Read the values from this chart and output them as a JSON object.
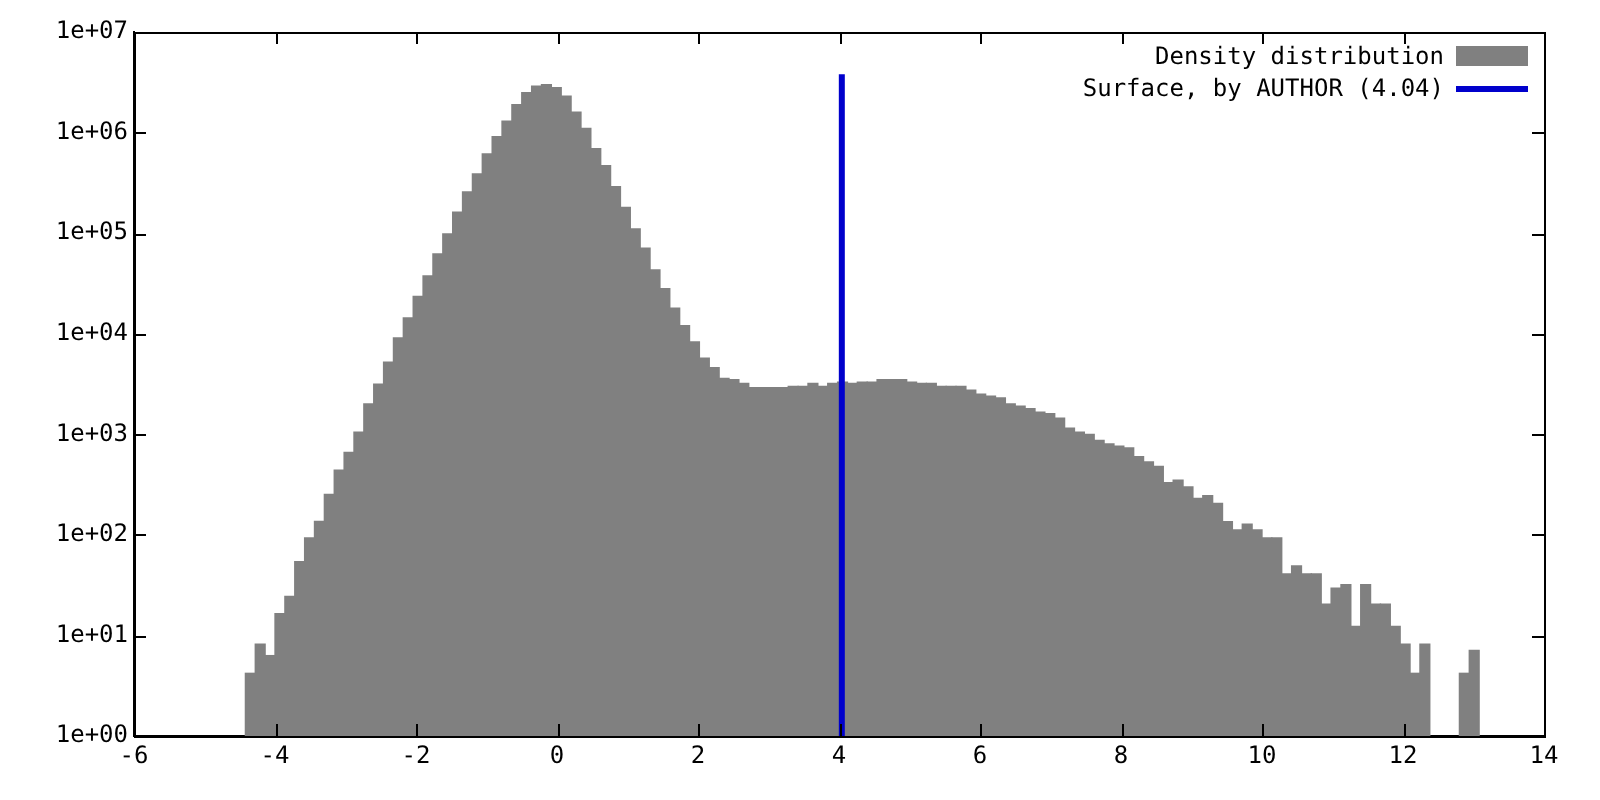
{
  "chart_data": {
    "type": "histogram",
    "log": "y",
    "grid": false,
    "legend": "top right",
    "bins": [
      -4.42,
      -4.28,
      -4.14,
      -4.0,
      -3.86,
      -3.72,
      -3.58,
      -3.44,
      -3.3,
      -3.16,
      -3.02,
      -2.88,
      -2.74,
      -2.6,
      -2.46,
      -2.32,
      -2.18,
      -2.04,
      -1.9,
      -1.76,
      -1.62,
      -1.48,
      -1.34,
      -1.2,
      -1.06,
      -0.92,
      -0.78,
      -0.64,
      -0.5,
      -0.36,
      -0.22,
      -0.08,
      0.06,
      0.2,
      0.34,
      0.48,
      0.62,
      0.76,
      0.9,
      1.04,
      1.18,
      1.32,
      1.46,
      1.6,
      1.74,
      1.88,
      2.02,
      2.16,
      2.3,
      2.44,
      2.58,
      2.72,
      2.86,
      3.0,
      3.14,
      3.28,
      3.42,
      3.56,
      3.7,
      3.84,
      3.98,
      4.12,
      4.26,
      4.4,
      4.54,
      4.68,
      4.82,
      4.96,
      5.1,
      5.24,
      5.38,
      5.52,
      5.66,
      5.8,
      5.94,
      6.08,
      6.22,
      6.36,
      6.5,
      6.64,
      6.78,
      6.92,
      7.06,
      7.2,
      7.34,
      7.48,
      7.62,
      7.76,
      7.9,
      8.04,
      8.18,
      8.32,
      8.46,
      8.6,
      8.74,
      8.88,
      9.02,
      9.16,
      9.3,
      9.44,
      9.58,
      9.72,
      9.86,
      10.0,
      10.14,
      10.28,
      10.42,
      10.56,
      10.7,
      10.84,
      10.98,
      11.12,
      11.26,
      11.4,
      11.54,
      11.68,
      11.82,
      11.96,
      12.1,
      12.24,
      12.38,
      12.52,
      12.66,
      12.8,
      12.94,
      13.08
    ],
    "series": [
      {
        "name": "Density distribution",
        "color": "#808080",
        "values": [
          4.2,
          8.2,
          6.3,
          16.5,
          24.5,
          54,
          93,
          136,
          253,
          440,
          660,
          1050,
          2000,
          3150,
          5200,
          9100,
          14400,
          23500,
          37500,
          62000,
          98000,
          162000,
          257000,
          389000,
          615000,
          912000,
          1300000,
          1900000,
          2500000,
          2900000,
          3000000,
          2800000,
          2300000,
          1600000,
          1100000,
          690000,
          470000,
          290000,
          180000,
          110000,
          71000,
          43000,
          28000,
          18000,
          12000,
          8300,
          5700,
          4600,
          3600,
          3500,
          3200,
          2900,
          2900,
          2900,
          2900,
          3000,
          3000,
          3200,
          3000,
          3200,
          3300,
          3200,
          3300,
          3300,
          3500,
          3500,
          3500,
          3300,
          3200,
          3200,
          3000,
          3000,
          3000,
          2750,
          2500,
          2400,
          2300,
          2000,
          1900,
          1800,
          1660,
          1600,
          1450,
          1150,
          1050,
          1000,
          870,
          800,
          760,
          730,
          600,
          530,
          480,
          330,
          350,
          300,
          230,
          245,
          205,
          135,
          112,
          128,
          112,
          93,
          93,
          41,
          49,
          41,
          41,
          20.5,
          29.5,
          32,
          12.3,
          32,
          20.5,
          20.5,
          12.3,
          8.2,
          4.2,
          8.2,
          null,
          null,
          null,
          4.2,
          7.1
        ]
      },
      {
        "name": "Surface, by AUTHOR (4.04)",
        "type": "line",
        "color": "#0000cc",
        "x": [
          4.04,
          4.04
        ],
        "values": [
          1,
          3800000
        ]
      }
    ],
    "xlim": [
      -6,
      14
    ],
    "xticks": [
      -6,
      -4,
      -2,
      0,
      2,
      4,
      6,
      8,
      10,
      12,
      14
    ],
    "ylim": [
      1,
      10000000
    ],
    "yticks": [
      {
        "value": 1,
        "label": "1e+00"
      },
      {
        "value": 10,
        "label": "1e+01"
      },
      {
        "value": 100,
        "label": "1e+02"
      },
      {
        "value": 1000,
        "label": "1e+03"
      },
      {
        "value": 10000,
        "label": "1e+04"
      },
      {
        "value": 100000,
        "label": "1e+05"
      },
      {
        "value": 1000000,
        "label": "1e+06"
      },
      {
        "value": 10000000,
        "label": "1e+07"
      }
    ]
  }
}
